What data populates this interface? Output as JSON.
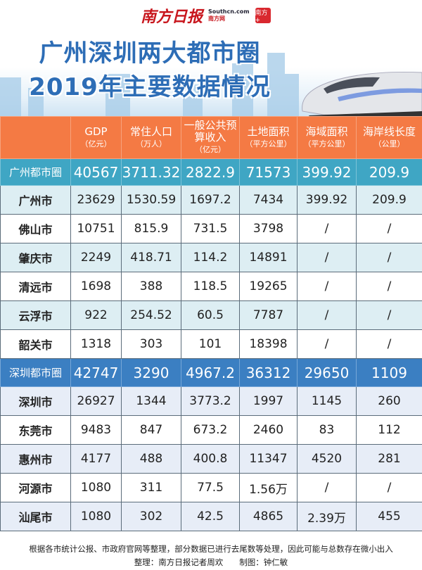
{
  "brand": {
    "paper": "南方日报",
    "site_en": "Southcn.com",
    "site_cn": "南方网",
    "app": "南方+"
  },
  "title": {
    "line1": "广州深圳两大都市圈",
    "line2": "2019年主要数据情况"
  },
  "colors": {
    "header": "#f47a44",
    "guangzhou_group": "#3fa6c4",
    "shenzhen_group": "#3b7fc2",
    "title": "#2d6db6"
  },
  "columns": [
    {
      "label": "",
      "unit": ""
    },
    {
      "label": "GDP",
      "unit": "（亿元）"
    },
    {
      "label": "常住人口",
      "unit": "（万人）"
    },
    {
      "label": "一般公共预算收入",
      "unit": "（亿元）"
    },
    {
      "label": "土地面积",
      "unit": "（平方公里）"
    },
    {
      "label": "海域面积",
      "unit": "（平方公里）"
    },
    {
      "label": "海岸线长度",
      "unit": "（公里）"
    }
  ],
  "rows": [
    {
      "type": "gz",
      "cells": [
        "广州都市圈",
        "40567",
        "3711.32",
        "2822.9",
        "71573",
        "399.92",
        "209.9"
      ]
    },
    {
      "type": "a",
      "cells": [
        "广州市",
        "23629",
        "1530.59",
        "1697.2",
        "7434",
        "399.92",
        "209.9"
      ]
    },
    {
      "type": "b",
      "cells": [
        "佛山市",
        "10751",
        "815.9",
        "731.5",
        "3798",
        "/",
        "/"
      ]
    },
    {
      "type": "a",
      "cells": [
        "肇庆市",
        "2249",
        "418.71",
        "114.2",
        "14891",
        "/",
        "/"
      ]
    },
    {
      "type": "b",
      "cells": [
        "清远市",
        "1698",
        "388",
        "118.5",
        "19265",
        "/",
        "/"
      ]
    },
    {
      "type": "a",
      "cells": [
        "云浮市",
        "922",
        "254.52",
        "60.5",
        "7787",
        "/",
        "/"
      ]
    },
    {
      "type": "b",
      "cells": [
        "韶关市",
        "1318",
        "303",
        "101",
        "18398",
        "/",
        "/"
      ]
    },
    {
      "type": "sz",
      "cells": [
        "深圳都市圈",
        "42747",
        "3290",
        "4967.2",
        "36312",
        "29650",
        "1109"
      ]
    },
    {
      "type": "c",
      "cells": [
        "深圳市",
        "26927",
        "1344",
        "3773.2",
        "1997",
        "1145",
        "260"
      ]
    },
    {
      "type": "b",
      "cells": [
        "东莞市",
        "9483",
        "847",
        "673.2",
        "2460",
        "83",
        "112"
      ]
    },
    {
      "type": "c",
      "cells": [
        "惠州市",
        "4177",
        "488",
        "400.8",
        "11347",
        "4520",
        "281"
      ]
    },
    {
      "type": "b",
      "cells": [
        "河源市",
        "1080",
        "311",
        "77.5",
        "1.56万",
        "/",
        "/"
      ]
    },
    {
      "type": "c",
      "cells": [
        "汕尾市",
        "1080",
        "302",
        "42.5",
        "4865",
        "2.39万",
        "455"
      ]
    }
  ],
  "footer": {
    "note": "根据各市统计公报、市政府官网等整理，部分数据已进行去尾数等处理，因此可能与总数存在微小出入",
    "credit": "整理：南方日报记者周欢　　制图：钟仁敏"
  }
}
